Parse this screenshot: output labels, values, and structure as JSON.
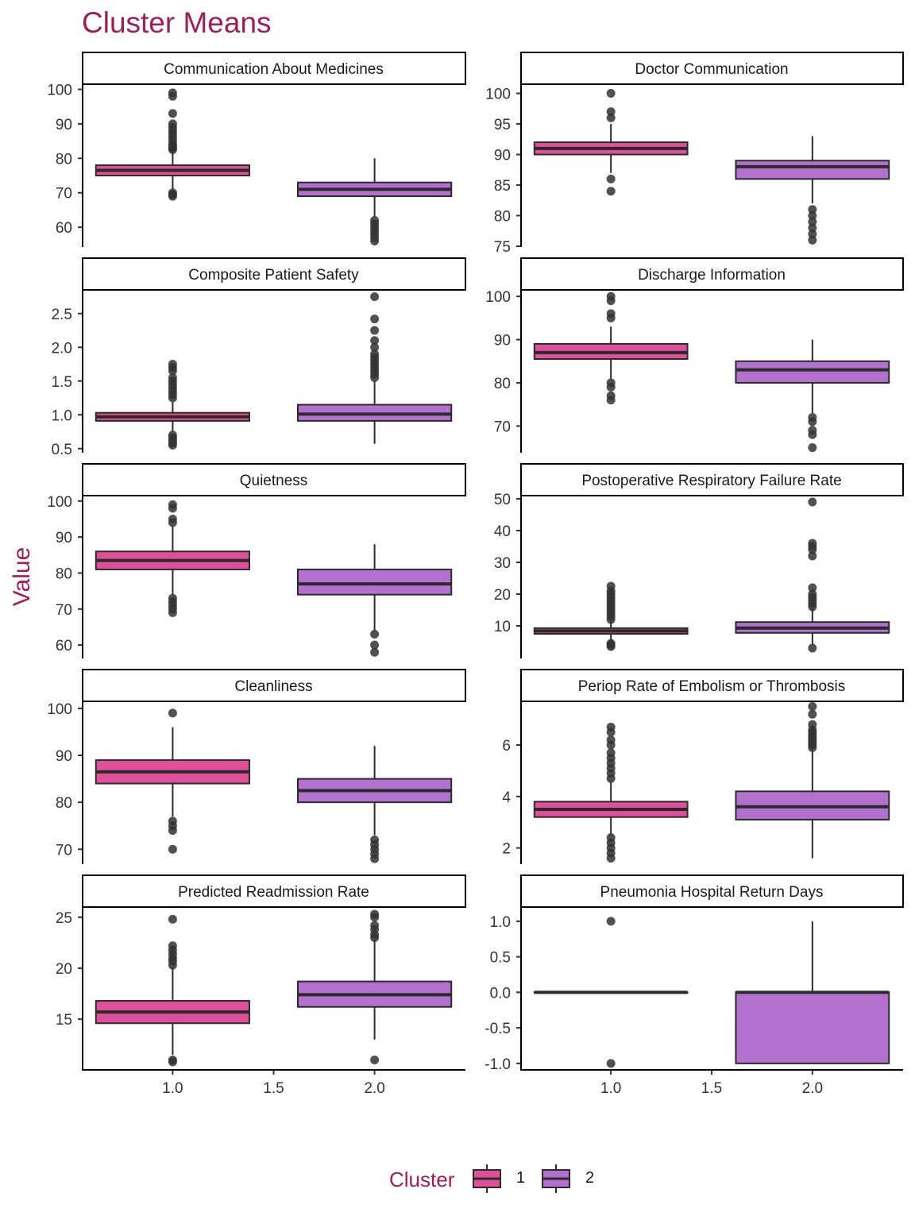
{
  "chart_data": {
    "type": "boxplot",
    "title": "Cluster Means",
    "ylabel": "Value",
    "xlabel": "",
    "x_ticks": [
      1.0,
      1.5,
      2.0
    ],
    "x_tick_labels": [
      "1.0",
      "1.5",
      "2.0"
    ],
    "xlim": [
      0.55,
      2.45
    ],
    "grid": false,
    "legend": {
      "title": "Cluster",
      "placement": "bottom",
      "entries": [
        {
          "label": "1",
          "color": "#E0509A"
        },
        {
          "label": "2",
          "color": "#B370CE"
        }
      ]
    },
    "panels": [
      {
        "name": "Communication About Medicines",
        "ylim": [
          54.5,
          101.5
        ],
        "ticks": [
          60,
          70,
          80,
          90,
          100
        ],
        "tick_labels": [
          "60",
          "70",
          "80",
          "90",
          "100"
        ],
        "boxes": [
          {
            "cluster": 1,
            "x": 1.0,
            "q1": 75,
            "median": 76.5,
            "q3": 78,
            "whisker_low": 71,
            "whisker_high": 82,
            "outliers": [
              69,
              69.5,
              70,
              82.5,
              83,
              83.5,
              84,
              85,
              86,
              87,
              88,
              89,
              90,
              93,
              98,
              99
            ]
          },
          {
            "cluster": 2,
            "x": 2.0,
            "q1": 69,
            "median": 71,
            "q3": 73,
            "whisker_low": 63,
            "whisker_high": 80,
            "outliers": [
              56,
              57,
              58,
              59,
              60,
              61,
              62
            ]
          }
        ]
      },
      {
        "name": "Doctor Communication",
        "ylim": [
          75,
          101.5
        ],
        "ticks": [
          75,
          80,
          85,
          90,
          95,
          100
        ],
        "tick_labels": [
          "75",
          "80",
          "85",
          "90",
          "95",
          "100"
        ],
        "boxes": [
          {
            "cluster": 1,
            "x": 1.0,
            "q1": 90,
            "median": 91,
            "q3": 92,
            "whisker_low": 87,
            "whisker_high": 95,
            "outliers": [
              84,
              86,
              96,
              97,
              100
            ]
          },
          {
            "cluster": 2,
            "x": 2.0,
            "q1": 86,
            "median": 88,
            "q3": 89,
            "whisker_low": 82,
            "whisker_high": 93,
            "outliers": [
              76,
              77,
              78,
              79,
              80,
              81
            ]
          }
        ]
      },
      {
        "name": "Composite Patient Safety",
        "ylim": [
          0.45,
          2.85
        ],
        "ticks": [
          0.5,
          1.0,
          1.5,
          2.0,
          2.5
        ],
        "tick_labels": [
          "0.5",
          "1.0",
          "1.5",
          "2.0",
          "2.5"
        ],
        "boxes": [
          {
            "cluster": 1,
            "x": 1.0,
            "q1": 0.91,
            "median": 0.97,
            "q3": 1.03,
            "whisker_low": 0.76,
            "whisker_high": 1.19,
            "outliers": [
              0.55,
              0.58,
              0.62,
              0.66,
              0.7,
              1.25,
              1.3,
              1.35,
              1.4,
              1.45,
              1.5,
              1.55,
              1.65,
              1.7,
              1.75
            ]
          },
          {
            "cluster": 2,
            "x": 2.0,
            "q1": 0.91,
            "median": 1.01,
            "q3": 1.15,
            "whisker_low": 0.57,
            "whisker_high": 1.5,
            "outliers": [
              1.55,
              1.6,
              1.65,
              1.7,
              1.75,
              1.8,
              1.85,
              1.9,
              2.0,
              2.1,
              2.25,
              2.42,
              2.75
            ]
          }
        ]
      },
      {
        "name": "Discharge Information",
        "ylim": [
          64,
          101.5
        ],
        "ticks": [
          70,
          80,
          90,
          100
        ],
        "tick_labels": [
          "70",
          "80",
          "90",
          "100"
        ],
        "boxes": [
          {
            "cluster": 1,
            "x": 1.0,
            "q1": 85.5,
            "median": 87,
            "q3": 89,
            "whisker_low": 81,
            "whisker_high": 93,
            "outliers": [
              76,
              77,
              79,
              80,
              95,
              96,
              99,
              100
            ]
          },
          {
            "cluster": 2,
            "x": 2.0,
            "q1": 80,
            "median": 83,
            "q3": 85,
            "whisker_low": 73,
            "whisker_high": 90,
            "outliers": [
              65,
              68,
              69,
              71,
              72
            ]
          }
        ]
      },
      {
        "name": "Quietness",
        "ylim": [
          56.5,
          101.5
        ],
        "ticks": [
          60,
          70,
          80,
          90,
          100
        ],
        "tick_labels": [
          "60",
          "70",
          "80",
          "90",
          "100"
        ],
        "boxes": [
          {
            "cluster": 1,
            "x": 1.0,
            "q1": 81,
            "median": 83.5,
            "q3": 86,
            "whisker_low": 74,
            "whisker_high": 93,
            "outliers": [
              69,
              70,
              71,
              72,
              73,
              94,
              95,
              98,
              99
            ]
          },
          {
            "cluster": 2,
            "x": 2.0,
            "q1": 74,
            "median": 77,
            "q3": 81,
            "whisker_low": 64,
            "whisker_high": 88,
            "outliers": [
              58,
              60,
              63
            ]
          }
        ]
      },
      {
        "name": "Postoperative Respiratory Failure Rate",
        "ylim": [
          0,
          51
        ],
        "ticks": [
          10,
          20,
          30,
          40,
          50
        ],
        "tick_labels": [
          "10",
          "20",
          "30",
          "40",
          "50"
        ],
        "boxes": [
          {
            "cluster": 1,
            "x": 1.0,
            "q1": 7.5,
            "median": 8.4,
            "q3": 9.3,
            "whisker_low": 5,
            "whisker_high": 11.5,
            "outliers": [
              3.5,
              4,
              4.5,
              12,
              13,
              14,
              15,
              16,
              17,
              18,
              19,
              20,
              21,
              22.5
            ]
          },
          {
            "cluster": 2,
            "x": 2.0,
            "q1": 7.8,
            "median": 9.3,
            "q3": 11.2,
            "whisker_low": 4,
            "whisker_high": 15.5,
            "outliers": [
              3,
              16,
              17,
              18,
              19,
              20,
              22,
              32,
              34,
              35,
              36,
              49
            ]
          }
        ]
      },
      {
        "name": "Cleanliness",
        "ylim": [
          67,
          101.5
        ],
        "ticks": [
          70,
          80,
          90,
          100
        ],
        "tick_labels": [
          "70",
          "80",
          "90",
          "100"
        ],
        "boxes": [
          {
            "cluster": 1,
            "x": 1.0,
            "q1": 84,
            "median": 86.5,
            "q3": 89,
            "whisker_low": 77,
            "whisker_high": 96,
            "outliers": [
              70,
              74,
              75,
              76,
              99
            ]
          },
          {
            "cluster": 2,
            "x": 2.0,
            "q1": 80,
            "median": 82.5,
            "q3": 85,
            "whisker_low": 73,
            "whisker_high": 92,
            "outliers": [
              68,
              69,
              70,
              71,
              72
            ]
          }
        ]
      },
      {
        "name": "Periop Rate of Embolism or Thrombosis",
        "ylim": [
          1.4,
          7.7
        ],
        "ticks": [
          2,
          4,
          6
        ],
        "tick_labels": [
          "2",
          "4",
          "6"
        ],
        "boxes": [
          {
            "cluster": 1,
            "x": 1.0,
            "q1": 3.2,
            "median": 3.5,
            "q3": 3.8,
            "whisker_low": 2.5,
            "whisker_high": 4.6,
            "outliers": [
              1.6,
              1.8,
              2.0,
              2.2,
              2.4,
              4.7,
              4.9,
              5.1,
              5.3,
              5.5,
              5.7,
              6.0,
              6.2,
              6.5,
              6.7
            ]
          },
          {
            "cluster": 2,
            "x": 2.0,
            "q1": 3.1,
            "median": 3.6,
            "q3": 4.2,
            "whisker_low": 1.6,
            "whisker_high": 5.8,
            "outliers": [
              5.9,
              6.0,
              6.1,
              6.2,
              6.3,
              6.4,
              6.5,
              6.6,
              6.8,
              7.2,
              7.5
            ]
          }
        ]
      },
      {
        "name": "Predicted Readmission Rate",
        "ylim": [
          10.1,
          26
        ],
        "ticks": [
          15,
          20,
          25
        ],
        "tick_labels": [
          "15",
          "20",
          "25"
        ],
        "boxes": [
          {
            "cluster": 1,
            "x": 1.0,
            "q1": 14.6,
            "median": 15.7,
            "q3": 16.8,
            "whisker_low": 11.5,
            "whisker_high": 20.1,
            "outliers": [
              10.8,
              11.0,
              20.3,
              20.7,
              21.0,
              21.4,
              21.8,
              22.2,
              24.8
            ]
          },
          {
            "cluster": 2,
            "x": 2.0,
            "q1": 16.2,
            "median": 17.4,
            "q3": 18.7,
            "whisker_low": 13.0,
            "whisker_high": 22.8,
            "outliers": [
              11.0,
              23.0,
              23.3,
              23.8,
              24.2,
              25.0,
              25.3
            ]
          }
        ]
      },
      {
        "name": "Pneumonia Hospital Return Days",
        "ylim": [
          -1.08,
          1.2
        ],
        "ticks": [
          -1.0,
          -0.5,
          0.0,
          0.5,
          1.0
        ],
        "tick_labels": [
          "-1.0",
          "-0.5",
          "0.0",
          "0.5",
          "1.0"
        ],
        "boxes": [
          {
            "cluster": 1,
            "x": 1.0,
            "q1": 0,
            "median": 0,
            "q3": 0,
            "whisker_low": 0,
            "whisker_high": 0,
            "outliers": [
              -1,
              1
            ]
          },
          {
            "cluster": 2,
            "x": 2.0,
            "q1": -1,
            "median": 0,
            "q3": 0,
            "whisker_low": -1,
            "whisker_high": 1,
            "outliers": []
          }
        ]
      }
    ]
  },
  "colors": {
    "accent": "#9E1F56",
    "cluster_1": "#E0509A",
    "cluster_2": "#B370CE",
    "outline": "#2b2b2b",
    "outlier": "#333333"
  }
}
